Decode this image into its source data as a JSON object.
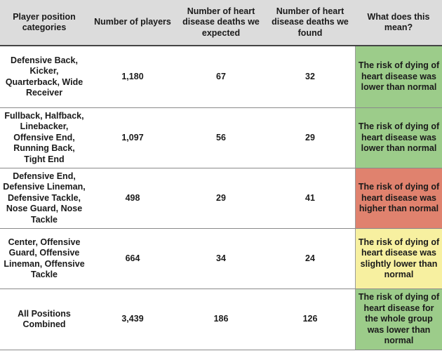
{
  "headers": {
    "category": "Player position categories",
    "players": "Number of players",
    "expected": "Number of heart disease deaths we expected",
    "found": "Number of heart disease deaths we found",
    "meaning": "What does this mean?"
  },
  "rows": [
    {
      "category": "Defensive Back, Kicker, Quarterback, Wide Receiver",
      "players": "1,180",
      "expected": "67",
      "found": "32",
      "meaning": "The risk of dying of heart disease was lower than normal",
      "color": "#9ccc8a"
    },
    {
      "category": "Fullback, Halfback, Linebacker, Offensive End, Running Back, Tight End",
      "players": "1,097",
      "expected": "56",
      "found": "29",
      "meaning": "The risk of dying of heart disease was lower than normal",
      "color": "#9ccc8a"
    },
    {
      "category": "Defensive End, Defensive Lineman, Defensive Tackle, Nose Guard, Nose Tackle",
      "players": "498",
      "expected": "29",
      "found": "41",
      "meaning": "The risk of dying of heart disease was higher than normal",
      "color": "#e0826e"
    },
    {
      "category": "Center, Offensive Guard, Offensive Lineman, Offensive Tackle",
      "players": "664",
      "expected": "34",
      "found": "24",
      "meaning": "The risk of dying of heart disease was slightly lower than normal",
      "color": "#f7f0a0"
    },
    {
      "category": "All Positions Combined",
      "players": "3,439",
      "expected": "186",
      "found": "126",
      "meaning": "The risk of dying of heart disease for the whole group was lower than normal",
      "color": "#9ccc8a"
    }
  ]
}
